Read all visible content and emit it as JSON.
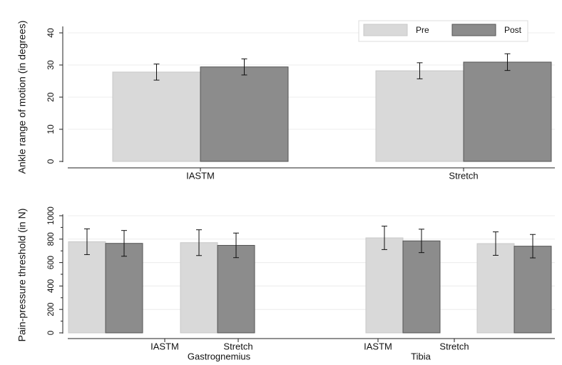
{
  "chart_data": [
    {
      "type": "bar",
      "ylabel": "Ankle range of motion (in degrees)",
      "xlabel": "",
      "ylim": [
        0,
        40
      ],
      "yticks": [
        0,
        10,
        20,
        30,
        40
      ],
      "grid": true,
      "legend_position": "top-right",
      "categories": [
        "IASTM",
        "Stretch"
      ],
      "series": [
        {
          "name": "Pre",
          "color": "#d9d9d9",
          "values": [
            27.8,
            28.2
          ],
          "error": [
            2.5,
            2.5
          ]
        },
        {
          "name": "Post",
          "color": "#8c8c8c",
          "values": [
            29.4,
            30.9
          ],
          "error": [
            2.5,
            2.6
          ]
        }
      ]
    },
    {
      "type": "bar",
      "ylabel": "Pain-pressure threshold (in N)",
      "xlabel": "",
      "ylim": [
        0,
        1000
      ],
      "yticks": [
        0,
        200,
        400,
        600,
        800,
        1000
      ],
      "yticks_minor": [
        100,
        300,
        500,
        700,
        900
      ],
      "grid": true,
      "groups": [
        "Gastrognemius",
        "Tibia"
      ],
      "categories": [
        "IASTM",
        "Stretch",
        "IASTM",
        "Stretch"
      ],
      "series": [
        {
          "name": "Pre",
          "color": "#d9d9d9",
          "values": [
            778,
            770,
            811,
            762
          ],
          "error": [
            110,
            110,
            100,
            100
          ]
        },
        {
          "name": "Post",
          "color": "#8c8c8c",
          "values": [
            764,
            747,
            785,
            740
          ],
          "error": [
            110,
            105,
            100,
            100
          ]
        }
      ]
    }
  ]
}
